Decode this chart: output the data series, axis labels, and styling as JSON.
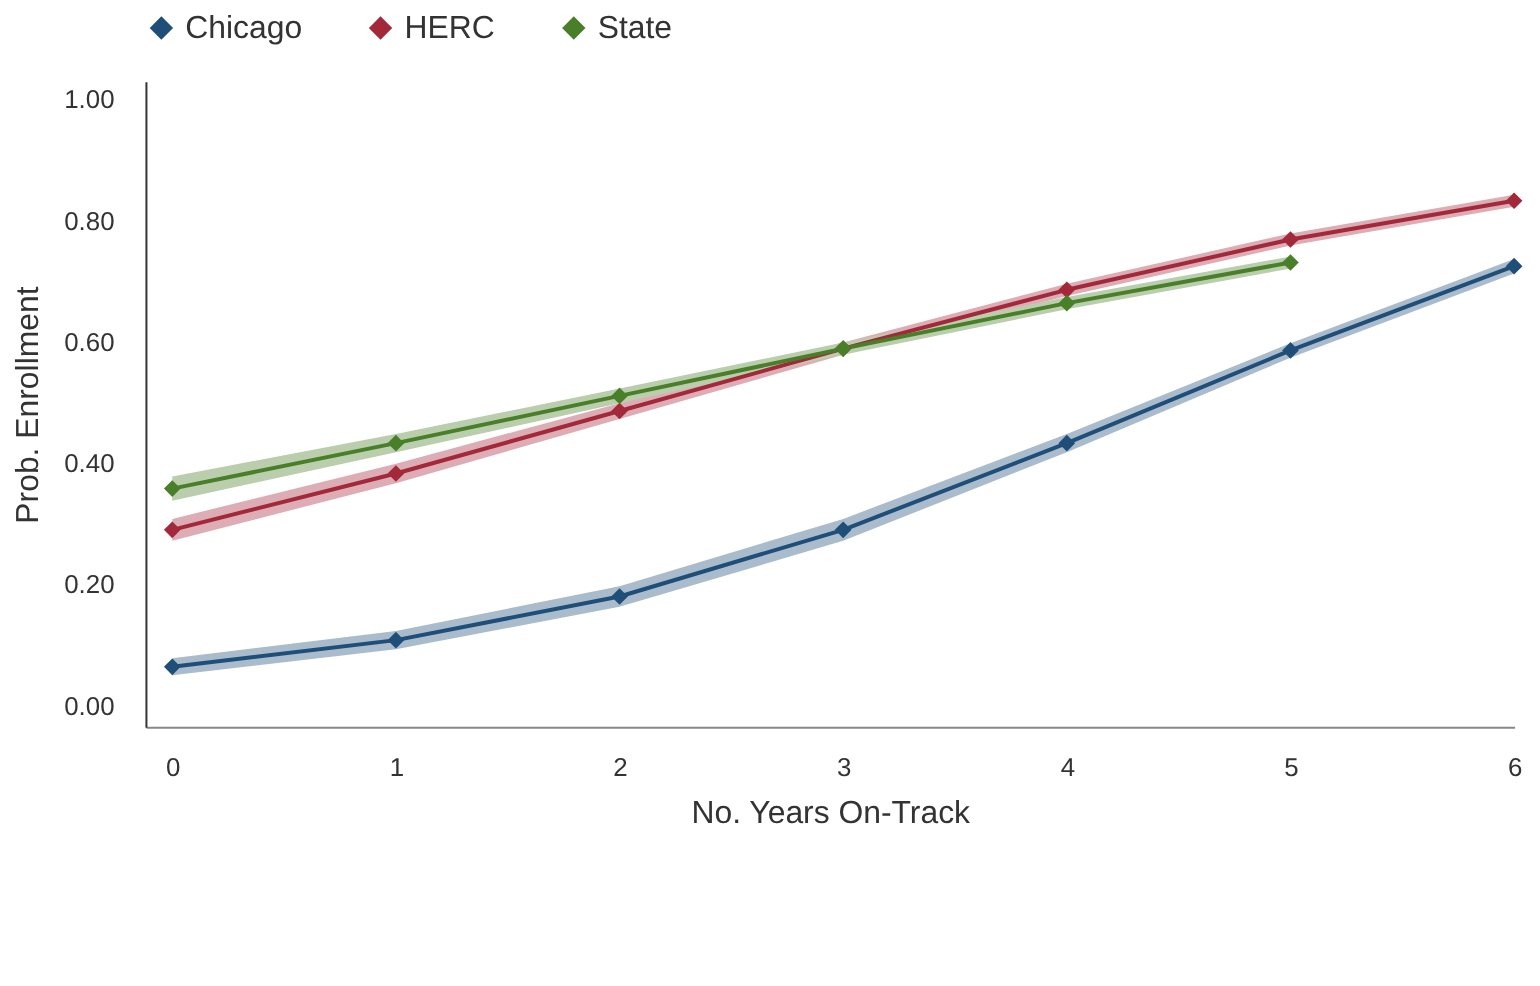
{
  "chart_data": {
    "type": "line",
    "xlabel": "No. Years On-Track",
    "ylabel": "Prob. Enrollment",
    "x": [
      0,
      1,
      2,
      3,
      4,
      5,
      6
    ],
    "xlim": [
      -0.12,
      6
    ],
    "xticks": [
      0,
      1,
      2,
      3,
      4,
      5,
      6
    ],
    "ylim": [
      -0.035,
      1.03
    ],
    "yticks": [
      {
        "value": 0,
        "label": "0.00"
      },
      {
        "value": 0.2,
        "label": "0.20"
      },
      {
        "value": 0.4,
        "label": "0.40"
      },
      {
        "value": 0.6,
        "label": "0.60"
      },
      {
        "value": 0.8,
        "label": "0.80"
      },
      {
        "value": 1,
        "label": "1.00"
      }
    ],
    "series": [
      {
        "name": "Chicago",
        "color": "#1f4e79",
        "values": [
          0.064,
          0.108,
          0.18,
          0.29,
          0.433,
          0.586,
          0.725
        ],
        "lower": [
          0.05,
          0.093,
          0.163,
          0.272,
          0.418,
          0.574,
          0.713
        ],
        "upper": [
          0.078,
          0.123,
          0.197,
          0.308,
          0.448,
          0.598,
          0.737
        ]
      },
      {
        "name": "HERC",
        "color": "#a3283a",
        "values": [
          0.29,
          0.383,
          0.486,
          0.589,
          0.686,
          0.769,
          0.833
        ],
        "lower": [
          0.272,
          0.367,
          0.473,
          0.579,
          0.676,
          0.759,
          0.823
        ],
        "upper": [
          0.308,
          0.399,
          0.499,
          0.599,
          0.696,
          0.779,
          0.843
        ]
      },
      {
        "name": "State",
        "color": "#4a7f2a",
        "values": [
          0.358,
          0.433,
          0.511,
          0.589,
          0.664,
          0.731,
          null
        ],
        "lower": [
          0.338,
          0.418,
          0.499,
          0.579,
          0.654,
          0.721,
          null
        ],
        "upper": [
          0.378,
          0.448,
          0.523,
          0.599,
          0.674,
          0.741,
          null
        ]
      }
    ],
    "legend": "top left",
    "marker": "diamond",
    "line_style": "solid",
    "grid": false
  }
}
